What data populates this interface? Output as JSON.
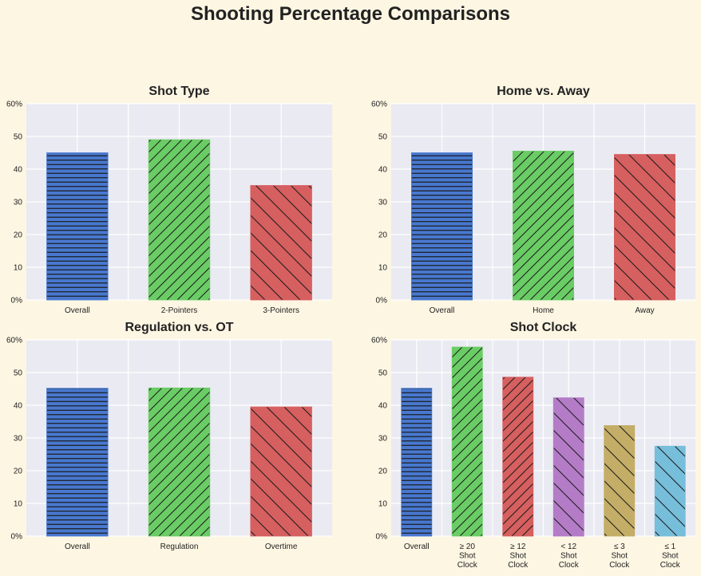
{
  "title": "Shooting Percentage Comparisons",
  "colors": {
    "blue": "#4878cf",
    "green": "#6acc65",
    "red": "#d65f5f",
    "purple": "#b47cc7",
    "gold": "#c4ad66",
    "cyan": "#77bedb",
    "axes_bg": "#eaeaf2",
    "figure_bg": "#fdf6e3"
  },
  "chart_data": [
    {
      "type": "bar",
      "title": "Shot Type",
      "categories": [
        "Overall",
        "2-Pointers",
        "3-Pointers"
      ],
      "values": [
        45,
        49,
        35
      ],
      "ylim": [
        0,
        60
      ],
      "yticks": [
        "0%",
        "10",
        "20",
        "30",
        "40",
        "50",
        "60%"
      ],
      "hatches": [
        "horizontal",
        "forward",
        "back"
      ],
      "bar_colors": [
        "blue",
        "green",
        "red"
      ],
      "grid": true
    },
    {
      "type": "bar",
      "title": "Home vs. Away",
      "categories": [
        "Overall",
        "Home",
        "Away"
      ],
      "values": [
        45,
        45.5,
        44.5
      ],
      "ylim": [
        0,
        60
      ],
      "yticks": [
        "0%",
        "10",
        "20",
        "30",
        "40",
        "50",
        "60%"
      ],
      "hatches": [
        "horizontal",
        "forward",
        "back"
      ],
      "bar_colors": [
        "blue",
        "green",
        "red"
      ],
      "grid": true
    },
    {
      "type": "bar",
      "title": "Regulation vs. OT",
      "categories": [
        "Overall",
        "Regulation",
        "Overtime"
      ],
      "values": [
        45.2,
        45.3,
        39.5
      ],
      "ylim": [
        0,
        60
      ],
      "yticks": [
        "0%",
        "10",
        "20",
        "30",
        "40",
        "50",
        "60%"
      ],
      "hatches": [
        "horizontal",
        "forward",
        "back"
      ],
      "bar_colors": [
        "blue",
        "green",
        "red"
      ],
      "grid": true
    },
    {
      "type": "bar",
      "title": "Shot Clock",
      "categories": [
        "Overall",
        "≥  20\nShot\nClock",
        "≥  12\nShot\nClock",
        "<  12\nShot\nClock",
        "≤  3\nShot\nClock",
        "≤  1\nShot\nClock"
      ],
      "values": [
        45.2,
        57.8,
        48.6,
        42.3,
        33.8,
        27.5
      ],
      "ylim": [
        0,
        60
      ],
      "yticks": [
        "0%",
        "10",
        "20",
        "30",
        "40",
        "50",
        "60%"
      ],
      "hatches": [
        "horizontal",
        "forward",
        "forward",
        "back",
        "back",
        "back"
      ],
      "bar_colors": [
        "blue",
        "green",
        "red",
        "purple",
        "gold",
        "cyan"
      ],
      "grid": true
    }
  ]
}
